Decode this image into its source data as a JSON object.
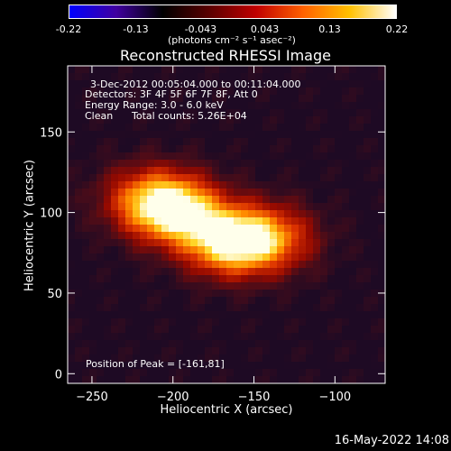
{
  "colorbar": {
    "ticks": [
      "-0.22",
      "-0.13",
      "-0.043",
      "0.043",
      "0.13",
      "0.22"
    ],
    "unit_label": "(photons cm⁻² s⁻¹ asec⁻²)",
    "colors": [
      "#0000ff",
      "#4000a0",
      "#000000",
      "#5a0000",
      "#c00000",
      "#ff6000",
      "#ffc000",
      "#ffffff"
    ]
  },
  "info": {
    "time_range": "3-Dec-2012 00:05:04.000 to 00:11:04.000",
    "detectors": "Detectors: 3F 4F 5F 6F 7F 8F, Att 0",
    "energy_range": "Energy Range: 3.0 - 6.0 keV",
    "method": "Clean",
    "total_counts": "Total counts: 5.26E+04",
    "peak": "Position of Peak = [-161,81]"
  },
  "footer": {
    "timestamp": "16-May-2022 14:08"
  },
  "chart_data": {
    "type": "heatmap",
    "title": "Reconstructed RHESSI Image",
    "xlabel": "Heliocentric X (arcsec)",
    "ylabel": "Heliocentric Y (arcsec)",
    "xlim": [
      -265,
      -69
    ],
    "ylim": [
      -6,
      191
    ],
    "xticks": [
      -250,
      -200,
      -150,
      -100
    ],
    "yticks": [
      0,
      50,
      100,
      150
    ],
    "zlim": [
      -0.22,
      0.22
    ],
    "peak": [
      -161,
      81
    ],
    "sources": [
      {
        "x": -200,
        "y": 102,
        "amplitude": 0.22
      },
      {
        "x": -165,
        "y": 82,
        "amplitude": 0.21
      },
      {
        "x": -140,
        "y": 84,
        "amplitude": 0.12
      },
      {
        "x": -218,
        "y": 110,
        "amplitude": 0.08
      }
    ]
  }
}
